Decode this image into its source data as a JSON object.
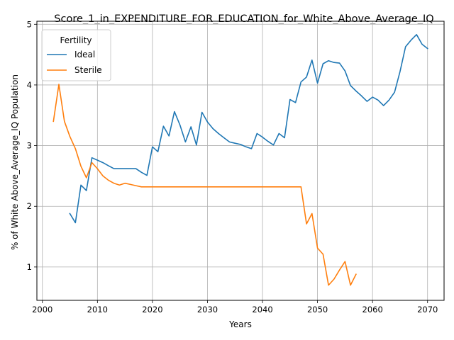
{
  "chart_data": {
    "type": "line",
    "title": "Score_1_in_EXPENDITURE_FOR_EDUCATION_for_White_Above_Average_IQ",
    "xlabel": "Years",
    "ylabel": "% of White Above_Average_IQ Population",
    "xlim": [
      1999,
      2073
    ],
    "ylim": [
      0.45,
      5.05
    ],
    "xticks": [
      2000,
      2010,
      2020,
      2030,
      2040,
      2050,
      2060,
      2070
    ],
    "xtick_labels": [
      "2000",
      "2010",
      "2020",
      "2030",
      "2040",
      "2050",
      "2060",
      "2070"
    ],
    "yticks": [
      1,
      2,
      3,
      4,
      5
    ],
    "ytick_labels": [
      "1",
      "2",
      "3",
      "4",
      "5"
    ],
    "grid": true,
    "legend": {
      "title": "Fertility",
      "placement": "top-left"
    },
    "series": [
      {
        "name": "Ideal",
        "color": "#1f77b4",
        "x": [
          2005,
          2006,
          2007,
          2008,
          2009,
          2010,
          2011,
          2012,
          2013,
          2014,
          2015,
          2016,
          2017,
          2018,
          2019,
          2020,
          2021,
          2022,
          2023,
          2024,
          2025,
          2026,
          2027,
          2028,
          2029,
          2030,
          2031,
          2032,
          2033,
          2034,
          2035,
          2036,
          2037,
          2038,
          2039,
          2040,
          2041,
          2042,
          2043,
          2044,
          2045,
          2046,
          2047,
          2048,
          2049,
          2050,
          2051,
          2052,
          2053,
          2054,
          2055,
          2056,
          2057,
          2058,
          2059,
          2060,
          2061,
          2062,
          2063,
          2064,
          2065,
          2066,
          2067,
          2068,
          2069,
          2070
        ],
        "y": [
          1.88,
          1.73,
          2.35,
          2.26,
          2.8,
          2.76,
          2.72,
          2.67,
          2.62,
          2.62,
          2.62,
          2.62,
          2.62,
          2.56,
          2.51,
          2.98,
          2.9,
          3.32,
          3.16,
          3.56,
          3.34,
          3.06,
          3.31,
          3.01,
          3.55,
          3.39,
          3.28,
          3.2,
          3.13,
          3.06,
          3.04,
          3.02,
          2.98,
          2.95,
          3.2,
          3.14,
          3.07,
          3.01,
          3.2,
          3.13,
          3.76,
          3.71,
          4.05,
          4.13,
          4.41,
          4.03,
          4.35,
          4.4,
          4.37,
          4.36,
          4.23,
          3.99,
          3.9,
          3.82,
          3.73,
          3.8,
          3.75,
          3.66,
          3.75,
          3.88,
          4.22,
          4.63,
          4.74,
          4.83,
          4.67,
          4.6
        ]
      },
      {
        "name": "Sterile",
        "color": "#ff7f0e",
        "x": [
          2002,
          2003,
          2004,
          2005,
          2006,
          2007,
          2008,
          2009,
          2010,
          2011,
          2012,
          2013,
          2014,
          2015,
          2016,
          2017,
          2018,
          2019,
          2020,
          2021,
          2022,
          2023,
          2024,
          2025,
          2026,
          2027,
          2028,
          2029,
          2030,
          2031,
          2032,
          2033,
          2034,
          2035,
          2036,
          2037,
          2038,
          2039,
          2040,
          2041,
          2042,
          2043,
          2044,
          2045,
          2046,
          2047,
          2048,
          2049,
          2050,
          2051,
          2052,
          2053,
          2054,
          2055,
          2056,
          2057
        ],
        "y": [
          3.4,
          4.01,
          3.4,
          3.15,
          2.95,
          2.66,
          2.47,
          2.72,
          2.62,
          2.5,
          2.43,
          2.38,
          2.35,
          2.38,
          2.36,
          2.34,
          2.32,
          2.32,
          2.32,
          2.32,
          2.32,
          2.32,
          2.32,
          2.32,
          2.32,
          2.32,
          2.32,
          2.32,
          2.32,
          2.32,
          2.32,
          2.32,
          2.32,
          2.32,
          2.32,
          2.32,
          2.32,
          2.32,
          2.32,
          2.32,
          2.32,
          2.32,
          2.32,
          2.32,
          2.32,
          2.32,
          1.71,
          1.88,
          1.31,
          1.21,
          0.7,
          0.8,
          0.95,
          1.09,
          0.7,
          0.88
        ]
      }
    ]
  }
}
